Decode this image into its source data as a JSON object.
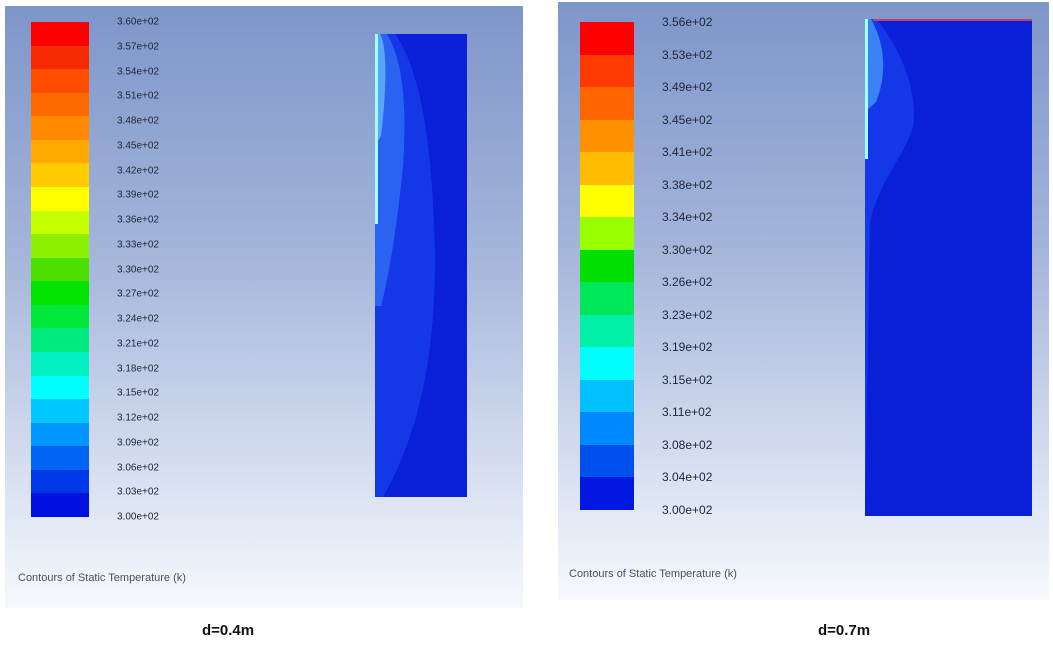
{
  "panels": [
    {
      "labels": [
        "3.60e+02",
        "3.57e+02",
        "3.54e+02",
        "3.51e+02",
        "3.48e+02",
        "3.45e+02",
        "3.42e+02",
        "3.39e+02",
        "3.36e+02",
        "3.33e+02",
        "3.30e+02",
        "3.27e+02",
        "3.24e+02",
        "3.21e+02",
        "3.18e+02",
        "3.15e+02",
        "3.12e+02",
        "3.09e+02",
        "3.06e+02",
        "3.03e+02",
        "3.00e+02"
      ],
      "colors": [
        "#ff0000",
        "#f52a00",
        "#ff4d00",
        "#ff6a00",
        "#ff8a00",
        "#ffa800",
        "#ffcc00",
        "#ffff00",
        "#c6ff00",
        "#8cf000",
        "#4be000",
        "#00e400",
        "#00e83a",
        "#00ec80",
        "#00f0c0",
        "#00ffff",
        "#00c8ff",
        "#0096ff",
        "#0064f5",
        "#0038e8",
        "#0010e0"
      ],
      "title": "Contours of Static Temperature (k)",
      "caption": "d=0.4m"
    },
    {
      "labels": [
        "3.56e+02",
        "3.53e+02",
        "3.49e+02",
        "3.45e+02",
        "3.41e+02",
        "3.38e+02",
        "3.34e+02",
        "3.30e+02",
        "3.26e+02",
        "3.23e+02",
        "3.19e+02",
        "3.15e+02",
        "3.11e+02",
        "3.08e+02",
        "3.04e+02",
        "3.00e+02"
      ],
      "colors": [
        "#ff0000",
        "#ff3a00",
        "#ff6400",
        "#ff9000",
        "#ffbb00",
        "#ffff00",
        "#99ff00",
        "#00e000",
        "#00e85a",
        "#00f0a8",
        "#00ffff",
        "#00c0ff",
        "#0088ff",
        "#0050ee",
        "#0018e0"
      ],
      "title": "Contours of Static Temperature (k)",
      "caption": "d=0.7m"
    }
  ]
}
